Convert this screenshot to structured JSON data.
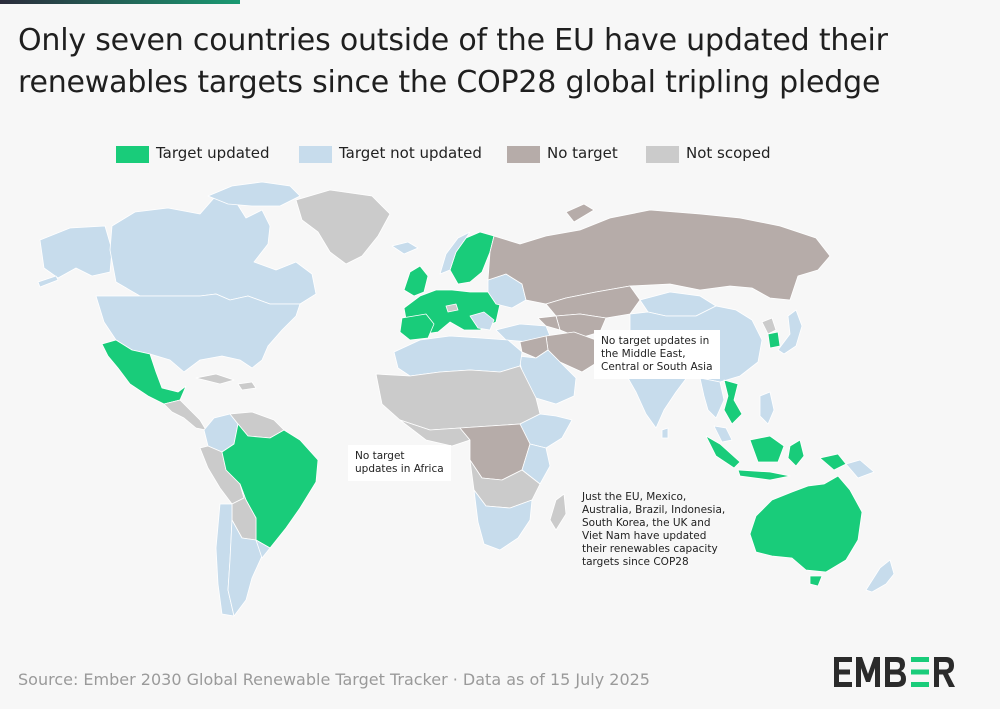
{
  "title": {
    "line1": "Only seven countries outside of the EU have updated their",
    "line2": "renewables targets since the COP28 global tripling pledge"
  },
  "legend": [
    {
      "label": "Target updated",
      "color": "#19cc7a"
    },
    {
      "label": "Target not updated",
      "color": "#c7dcec"
    },
    {
      "label": "No target",
      "color": "#b6aca9"
    },
    {
      "label": "Not scoped",
      "color": "#cbcbcb"
    }
  ],
  "annotations": {
    "middle_east": [
      "No target updates in",
      "the Middle East,",
      "Central or South Asia"
    ],
    "africa": [
      "No target",
      "updates in Africa"
    ],
    "updated": [
      "Just the EU, Mexico,",
      "Australia, Brazil, Indonesia,",
      "South Korea, the UK and",
      "Viet Nam have updated",
      "their renewables capacity",
      "targets since COP28"
    ]
  },
  "source": "Source: Ember 2030 Global Renewable Target Tracker · Data as of 15 July 2025",
  "logo": "EMBER",
  "colors": {
    "updated": "#19cc7a",
    "not_updated": "#c7dcec",
    "no_target": "#b6aca9",
    "not_scoped": "#cbcbcb",
    "logo_accent": "#19cc7a",
    "logo_text": "#2b2b2b"
  }
}
